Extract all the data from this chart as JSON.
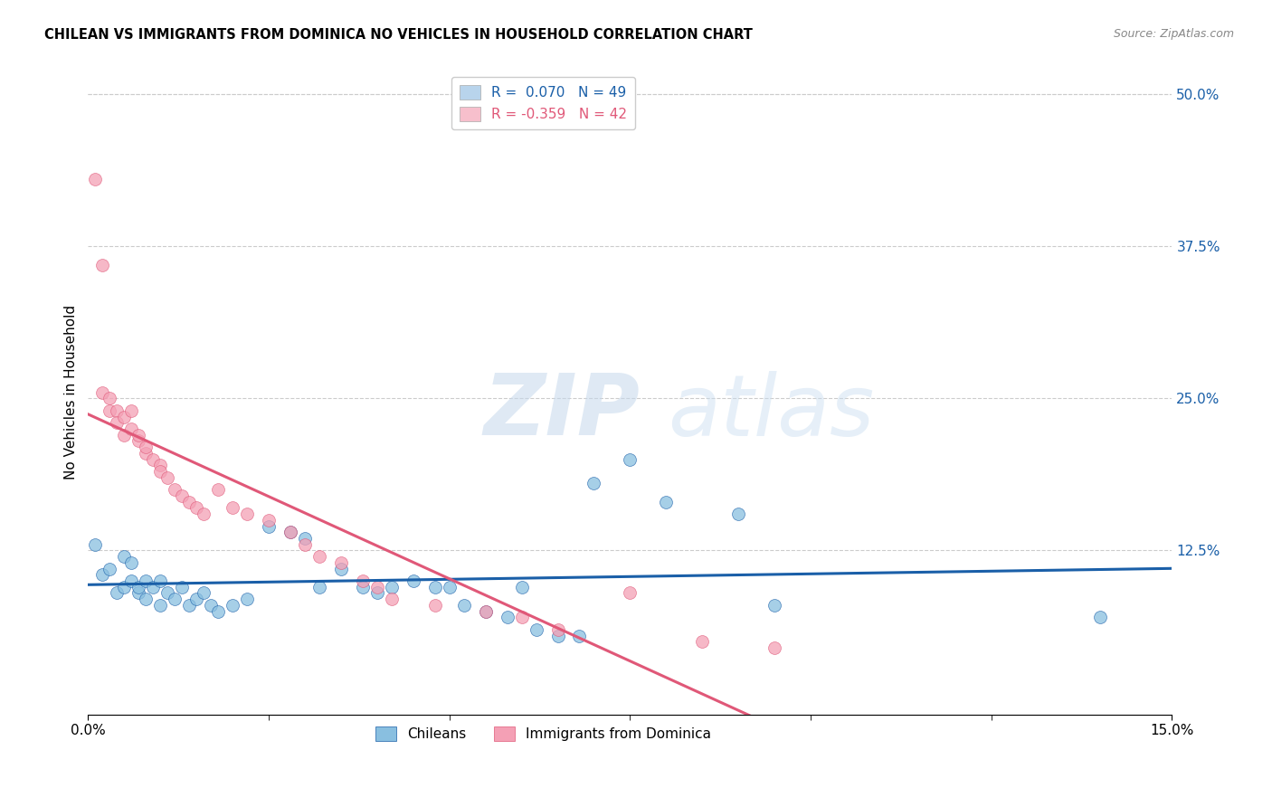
{
  "title": "CHILEAN VS IMMIGRANTS FROM DOMINICA NO VEHICLES IN HOUSEHOLD CORRELATION CHART",
  "source": "Source: ZipAtlas.com",
  "ylabel": "No Vehicles in Household",
  "ytick_labels": [
    "12.5%",
    "25.0%",
    "37.5%",
    "50.0%"
  ],
  "ytick_values": [
    0.125,
    0.25,
    0.375,
    0.5
  ],
  "xlim": [
    0.0,
    0.15
  ],
  "ylim": [
    -0.01,
    0.52
  ],
  "watermark_zip": "ZIP",
  "watermark_atlas": "atlas",
  "chileans_color": "#89bfe0",
  "dominica_color": "#f4a0b5",
  "trend_chileans_color": "#1a5fa8",
  "trend_dominica_color": "#e05878",
  "legend_blue_face": "#b8d4ec",
  "legend_pink_face": "#f7bfcc",
  "chileans_x": [
    0.001,
    0.002,
    0.003,
    0.004,
    0.005,
    0.005,
    0.006,
    0.006,
    0.007,
    0.007,
    0.008,
    0.008,
    0.009,
    0.01,
    0.01,
    0.011,
    0.012,
    0.013,
    0.014,
    0.015,
    0.016,
    0.017,
    0.018,
    0.02,
    0.022,
    0.025,
    0.028,
    0.03,
    0.032,
    0.035,
    0.038,
    0.04,
    0.042,
    0.045,
    0.048,
    0.05,
    0.052,
    0.055,
    0.058,
    0.06,
    0.062,
    0.065,
    0.068,
    0.07,
    0.075,
    0.08,
    0.09,
    0.095,
    0.14
  ],
  "chileans_y": [
    0.13,
    0.105,
    0.11,
    0.09,
    0.095,
    0.12,
    0.1,
    0.115,
    0.09,
    0.095,
    0.1,
    0.085,
    0.095,
    0.08,
    0.1,
    0.09,
    0.085,
    0.095,
    0.08,
    0.085,
    0.09,
    0.08,
    0.075,
    0.08,
    0.085,
    0.145,
    0.14,
    0.135,
    0.095,
    0.11,
    0.095,
    0.09,
    0.095,
    0.1,
    0.095,
    0.095,
    0.08,
    0.075,
    0.07,
    0.095,
    0.06,
    0.055,
    0.055,
    0.18,
    0.2,
    0.165,
    0.155,
    0.08,
    0.07
  ],
  "dominica_x": [
    0.001,
    0.002,
    0.002,
    0.003,
    0.003,
    0.004,
    0.004,
    0.005,
    0.005,
    0.006,
    0.006,
    0.007,
    0.007,
    0.008,
    0.008,
    0.009,
    0.01,
    0.01,
    0.011,
    0.012,
    0.013,
    0.014,
    0.015,
    0.016,
    0.018,
    0.02,
    0.022,
    0.025,
    0.028,
    0.03,
    0.032,
    0.035,
    0.038,
    0.04,
    0.042,
    0.048,
    0.055,
    0.06,
    0.065,
    0.075,
    0.085,
    0.095
  ],
  "dominica_y": [
    0.43,
    0.36,
    0.255,
    0.25,
    0.24,
    0.24,
    0.23,
    0.235,
    0.22,
    0.24,
    0.225,
    0.215,
    0.22,
    0.205,
    0.21,
    0.2,
    0.195,
    0.19,
    0.185,
    0.175,
    0.17,
    0.165,
    0.16,
    0.155,
    0.175,
    0.16,
    0.155,
    0.15,
    0.14,
    0.13,
    0.12,
    0.115,
    0.1,
    0.095,
    0.085,
    0.08,
    0.075,
    0.07,
    0.06,
    0.09,
    0.05,
    0.045
  ]
}
